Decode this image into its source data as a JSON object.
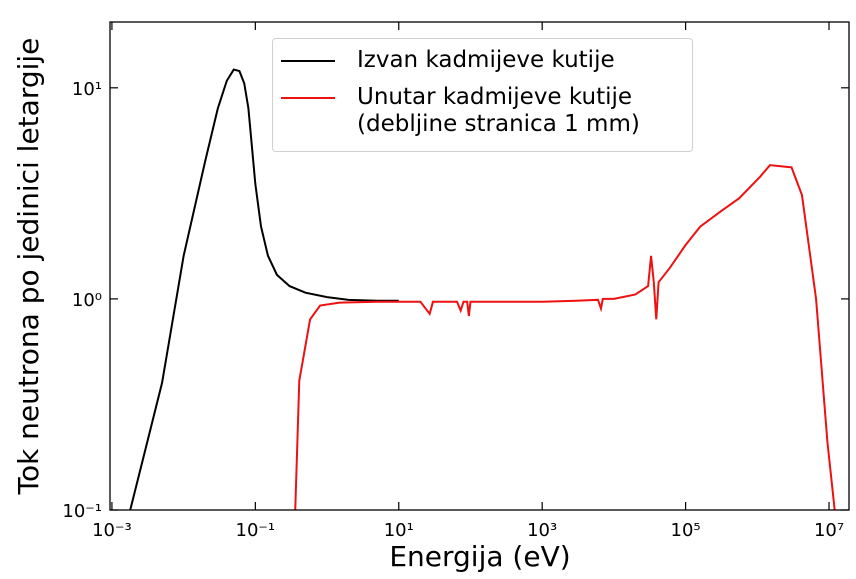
{
  "chart_data": {
    "type": "line",
    "xlabel": "Energija (eV)",
    "ylabel": "Tok neutrona po jedinici letargije",
    "xscale": "log",
    "yscale": "log",
    "xlim": [
      0.00094,
      19000000
    ],
    "ylim": [
      0.1,
      20.5
    ],
    "xticks": [
      {
        "value": 0.001,
        "label": "10⁻³"
      },
      {
        "value": 0.1,
        "label": "10⁻¹"
      },
      {
        "value": 10,
        "label": "10¹"
      },
      {
        "value": 1000,
        "label": "10³"
      },
      {
        "value": 100000,
        "label": "10⁵"
      },
      {
        "value": 10000000,
        "label": "10⁷"
      }
    ],
    "yticks": [
      {
        "value": 0.1,
        "label": "10⁻¹"
      },
      {
        "value": 1,
        "label": "10⁰"
      },
      {
        "value": 10,
        "label": "10¹"
      }
    ],
    "legend": "upper center",
    "series": [
      {
        "name": "Izvan kadmijeve kutije",
        "color": "#000000",
        "x": [
          0.0018,
          0.003,
          0.005,
          0.01,
          0.02,
          0.03,
          0.04,
          0.05,
          0.06,
          0.07,
          0.08,
          0.1,
          0.12,
          0.15,
          0.2,
          0.3,
          0.5,
          1,
          2,
          5,
          10
        ],
        "values": [
          0.1,
          0.2,
          0.4,
          1.6,
          4.5,
          8,
          10.8,
          12.2,
          12,
          10.5,
          8,
          3.5,
          2.2,
          1.6,
          1.3,
          1.15,
          1.07,
          1.02,
          0.99,
          0.98,
          0.98
        ]
      },
      {
        "name": "Unutar kadmijeve kutije\n(debljine stranica 1 mm)",
        "color": "#ee1111",
        "x": [
          0.36,
          0.41,
          0.58,
          0.8,
          1.5,
          5,
          20,
          27,
          30,
          65,
          73,
          80,
          90,
          95,
          100,
          300,
          1000,
          3000,
          6000,
          6600,
          7000,
          10000,
          20000,
          30000,
          33000,
          36000,
          39000,
          42000,
          60000,
          100000,
          160000,
          310000,
          560000,
          1100000,
          1500000,
          3000000,
          4200000,
          6600000,
          9500000,
          12000000
        ],
        "values": [
          0.1,
          0.41,
          0.8,
          0.93,
          0.96,
          0.97,
          0.97,
          0.85,
          0.97,
          0.97,
          0.88,
          0.97,
          0.97,
          0.83,
          0.97,
          0.97,
          0.97,
          0.98,
          0.99,
          0.9,
          1.0,
          1.0,
          1.05,
          1.15,
          1.6,
          1.2,
          0.8,
          1.2,
          1.4,
          1.8,
          2.2,
          2.6,
          3,
          3.8,
          4.3,
          4.2,
          3.1,
          1.0,
          0.21,
          0.1
        ]
      }
    ]
  }
}
